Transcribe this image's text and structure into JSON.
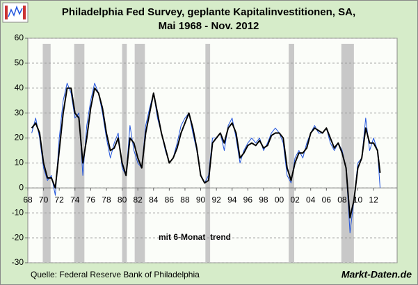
{
  "chart_data": {
    "type": "line",
    "title": "Philadelphia Fed Survey, geplante Kapitalinvestitionen, SA,",
    "subtitle": "Mai 1968 - Nov. 2012",
    "annotation": "mit 6-Monatstrend",
    "source": "Quelle: Federal Reserve Bank of Philadelphia",
    "brand": "Markt-Daten.de",
    "x": [
      1968.5,
      1969,
      1969.5,
      1970,
      1970.5,
      1971,
      1971.5,
      1972,
      1972.5,
      1973,
      1973.5,
      1974,
      1974.5,
      1975,
      1975.5,
      1976,
      1976.5,
      1977,
      1977.5,
      1978,
      1978.5,
      1979,
      1979.5,
      1980,
      1980.5,
      1981,
      1981.5,
      1982,
      1982.5,
      1983,
      1983.5,
      1984,
      1984.5,
      1985,
      1985.5,
      1986,
      1986.5,
      1987,
      1987.5,
      1988,
      1988.5,
      1989,
      1989.5,
      1990,
      1990.5,
      1991,
      1991.5,
      1992,
      1992.5,
      1993,
      1993.5,
      1994,
      1994.5,
      1995,
      1995.5,
      1996,
      1996.5,
      1997,
      1997.5,
      1998,
      1998.5,
      1999,
      1999.5,
      2000,
      2000.5,
      2001,
      2001.5,
      2002,
      2002.5,
      2003,
      2003.5,
      2004,
      2004.5,
      2005,
      2005.5,
      2006,
      2006.5,
      2007,
      2007.5,
      2008,
      2008.5,
      2009,
      2009.5,
      2010,
      2010.5,
      2011,
      2011.5,
      2012,
      2012.5,
      2012.83
    ],
    "series": [
      {
        "color": "#2255dd",
        "width": 1,
        "values": [
          22,
          28,
          20,
          8,
          3,
          5,
          -3,
          20,
          35,
          42,
          38,
          28,
          30,
          5,
          25,
          35,
          42,
          38,
          30,
          20,
          12,
          18,
          22,
          8,
          5,
          25,
          15,
          10,
          8,
          25,
          32,
          38,
          28,
          22,
          15,
          10,
          12,
          18,
          25,
          28,
          30,
          22,
          15,
          5,
          2,
          5,
          20,
          20,
          22,
          15,
          25,
          28,
          20,
          10,
          15,
          18,
          20,
          18,
          20,
          15,
          18,
          22,
          24,
          22,
          18,
          5,
          2,
          12,
          15,
          12,
          18,
          22,
          25,
          22,
          22,
          24,
          18,
          15,
          18,
          15,
          8,
          -18,
          -5,
          10,
          12,
          28,
          15,
          20,
          15,
          0
        ]
      },
      {
        "color": "#000000",
        "width": 2,
        "values": [
          24,
          26,
          22,
          10,
          4,
          4,
          0,
          15,
          30,
          40,
          40,
          30,
          28,
          10,
          20,
          32,
          40,
          38,
          32,
          22,
          15,
          16,
          20,
          10,
          5,
          20,
          18,
          12,
          8,
          22,
          30,
          38,
          30,
          22,
          16,
          10,
          12,
          16,
          22,
          26,
          30,
          24,
          16,
          5,
          2,
          3,
          18,
          20,
          22,
          18,
          24,
          26,
          22,
          12,
          14,
          17,
          18,
          17,
          19,
          16,
          17,
          21,
          22,
          22,
          20,
          8,
          3,
          10,
          14,
          14,
          16,
          22,
          24,
          23,
          22,
          24,
          20,
          16,
          18,
          14,
          8,
          -12,
          -5,
          8,
          12,
          24,
          18,
          18,
          15,
          6
        ]
      }
    ],
    "shaded_periods": [
      [
        1969.9,
        1970.9
      ],
      [
        1973.9,
        1975.2
      ],
      [
        1980.0,
        1980.6
      ],
      [
        1981.6,
        1982.9
      ],
      [
        1990.6,
        1991.2
      ],
      [
        2001.2,
        2001.9
      ],
      [
        2007.9,
        2009.5
      ]
    ],
    "shade_color": "#c8c8c8",
    "xlim": [
      1968,
      2015
    ],
    "ylim": [
      -30,
      60
    ],
    "yticks": [
      -30,
      -20,
      -10,
      0,
      10,
      20,
      30,
      40,
      50,
      60
    ],
    "xticks": [
      {
        "value": 1968,
        "label": "68"
      },
      {
        "value": 1970,
        "label": "70"
      },
      {
        "value": 1972,
        "label": "72"
      },
      {
        "value": 1974,
        "label": "74"
      },
      {
        "value": 1976,
        "label": "76"
      },
      {
        "value": 1978,
        "label": "78"
      },
      {
        "value": 1980,
        "label": "80"
      },
      {
        "value": 1982,
        "label": "82"
      },
      {
        "value": 1984,
        "label": "84"
      },
      {
        "value": 1986,
        "label": "86"
      },
      {
        "value": 1988,
        "label": "88"
      },
      {
        "value": 1990,
        "label": "90"
      },
      {
        "value": 1992,
        "label": "92"
      },
      {
        "value": 1994,
        "label": "94"
      },
      {
        "value": 1996,
        "label": "96"
      },
      {
        "value": 1998,
        "label": "98"
      },
      {
        "value": 2000,
        "label": "00"
      },
      {
        "value": 2002,
        "label": "02"
      },
      {
        "value": 2004,
        "label": "04"
      },
      {
        "value": 2006,
        "label": "06"
      },
      {
        "value": 2008,
        "label": "08"
      },
      {
        "value": 2010,
        "label": "10"
      },
      {
        "value": 2012,
        "label": "12"
      }
    ],
    "grid": true
  }
}
